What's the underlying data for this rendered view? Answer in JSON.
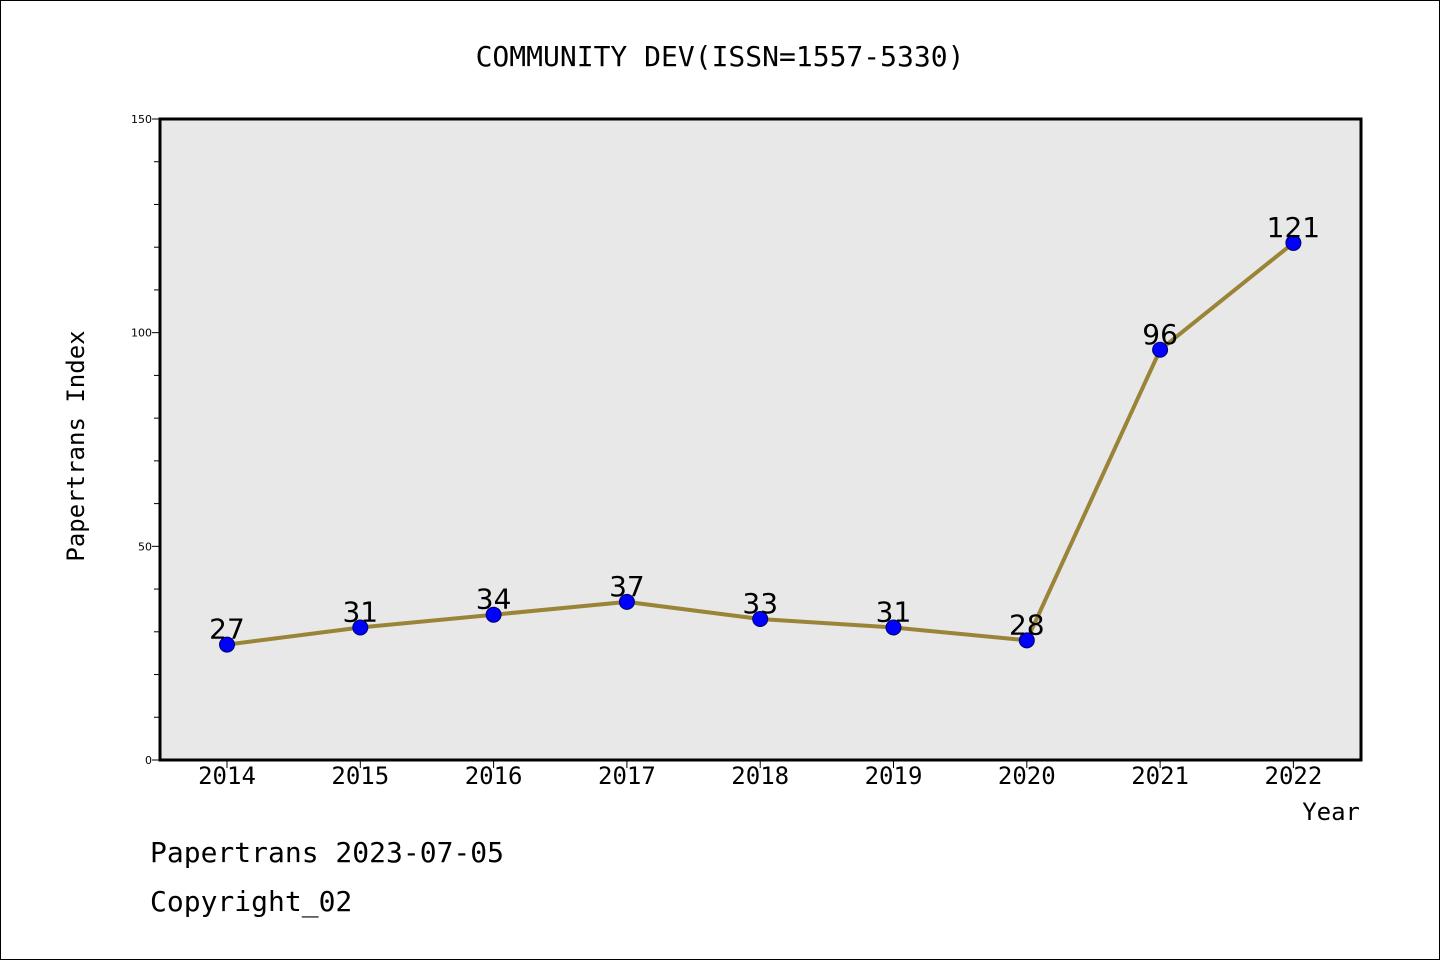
{
  "chart_data": {
    "type": "line",
    "title": "COMMUNITY DEV(ISSN=1557-5330)",
    "xlabel": "Year",
    "ylabel": "Papertrans Index",
    "categories": [
      "2014",
      "2015",
      "2016",
      "2017",
      "2018",
      "2019",
      "2020",
      "2021",
      "2022"
    ],
    "series": [
      {
        "values": [
          27,
          31,
          34,
          37,
          33,
          31,
          28,
          96,
          121
        ]
      }
    ],
    "ylim": [
      0,
      150
    ],
    "yticks": [
      "0",
      "50",
      "100",
      "150"
    ],
    "grid": false,
    "legend": "none",
    "colors": {
      "line": "#9a8437",
      "marker": "#0000ff",
      "plot_bg": "#e8e8e8"
    }
  },
  "footer": {
    "line1": "Papertrans 2023-07-05",
    "line2": "Copyright_02"
  }
}
